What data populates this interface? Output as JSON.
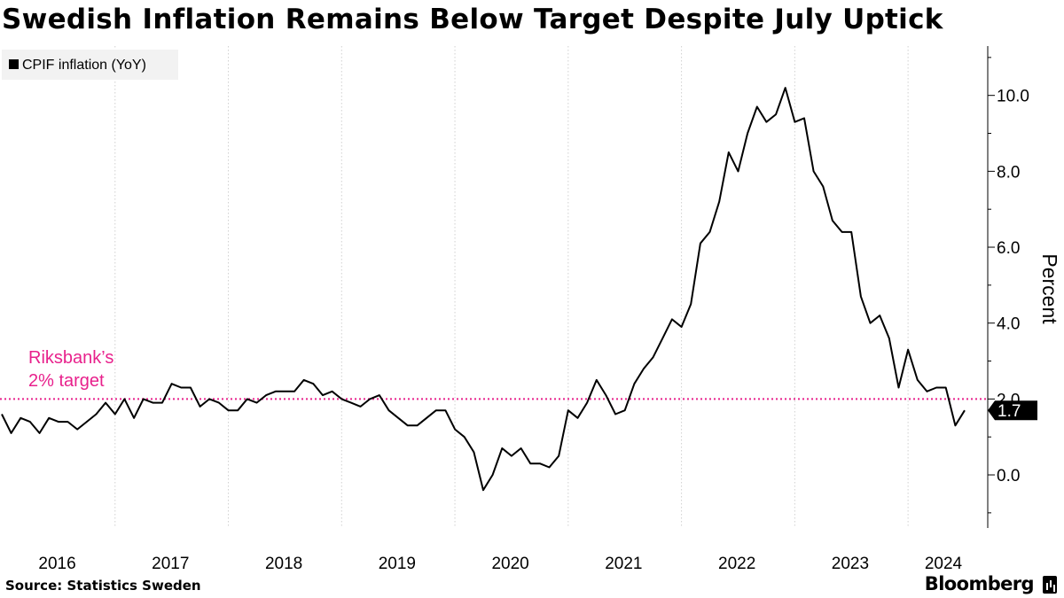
{
  "title": "Swedish Inflation Remains Below Target Despite July Uptick",
  "source": "Source: Statistics Sweden",
  "brand": "Bloomberg",
  "colors": {
    "line": "#000000",
    "target": "#e8218c",
    "grid": "#d0d0d0",
    "legend_bg": "#f2f2f2"
  },
  "chart_data": {
    "type": "line",
    "title": "Swedish Inflation Remains Below Target Despite July Uptick",
    "ylabel": "Percent",
    "xlabel": "",
    "ylim": [
      -1.4,
      11.3
    ],
    "yticks": [
      0,
      2,
      4,
      6,
      8,
      10
    ],
    "ytick_labels": [
      "0.0",
      "2.0",
      "4.0",
      "6.0",
      "8.0",
      "10.0"
    ],
    "x_start": "2016-01",
    "x_end": "2024-07",
    "xtick_labels": [
      "2016",
      "2017",
      "2018",
      "2019",
      "2020",
      "2021",
      "2022",
      "2023",
      "2024"
    ],
    "grid": true,
    "legend_position": "top-left",
    "series": [
      {
        "name": "CPIF inflation (YoY)",
        "start": "2016-01",
        "frequency": "monthly",
        "values": [
          1.6,
          1.1,
          1.5,
          1.4,
          1.1,
          1.5,
          1.4,
          1.4,
          1.2,
          1.4,
          1.6,
          1.9,
          1.6,
          2.0,
          1.5,
          2.0,
          1.9,
          1.9,
          2.4,
          2.3,
          2.3,
          1.8,
          2.0,
          1.9,
          1.7,
          1.7,
          2.0,
          1.9,
          2.1,
          2.2,
          2.2,
          2.2,
          2.5,
          2.4,
          2.1,
          2.2,
          2.0,
          1.9,
          1.8,
          2.0,
          2.1,
          1.7,
          1.5,
          1.3,
          1.3,
          1.5,
          1.7,
          1.7,
          1.2,
          1.0,
          0.6,
          -0.4,
          0.0,
          0.7,
          0.5,
          0.7,
          0.3,
          0.3,
          0.2,
          0.5,
          1.7,
          1.5,
          1.9,
          2.5,
          2.1,
          1.6,
          1.7,
          2.4,
          2.8,
          3.1,
          3.6,
          4.1,
          3.9,
          4.5,
          6.1,
          6.4,
          7.2,
          8.5,
          8.0,
          9.0,
          9.7,
          9.3,
          9.5,
          10.2,
          9.3,
          9.4,
          8.0,
          7.6,
          6.7,
          6.4,
          6.4,
          4.7,
          4.0,
          4.2,
          3.6,
          2.3,
          3.3,
          2.5,
          2.2,
          2.3,
          2.3,
          1.3,
          1.7
        ]
      }
    ],
    "last_value_label": "1.7",
    "annotations": [
      {
        "text_line1": "Riksbank’s",
        "text_line2": "2% target",
        "y": 2.0
      }
    ]
  }
}
